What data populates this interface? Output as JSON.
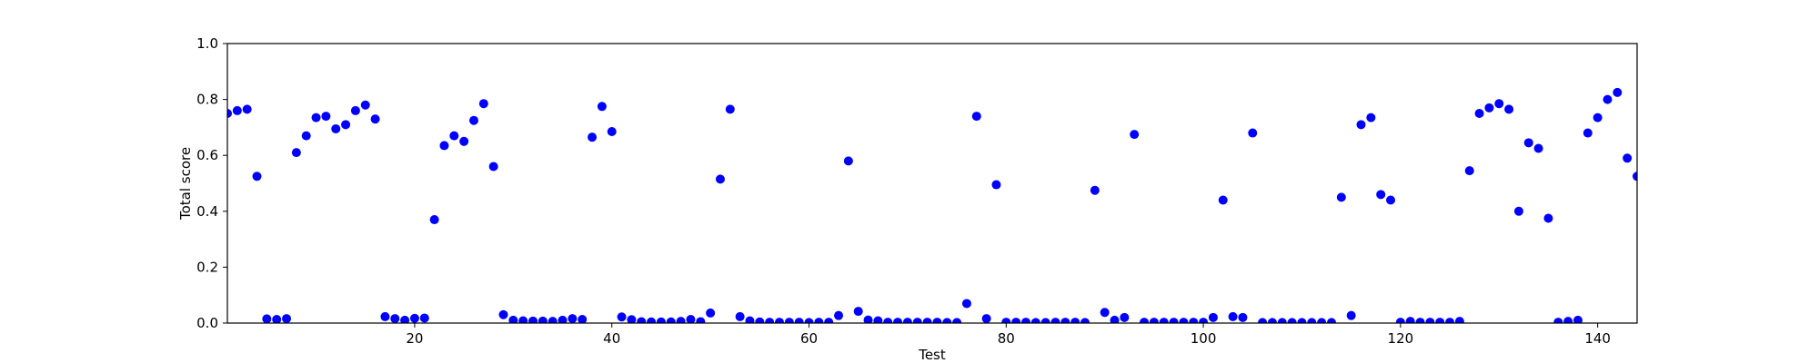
{
  "chart_data": {
    "type": "scatter",
    "title": "",
    "xlabel": "Test",
    "ylabel": "Total score",
    "xlim": [
      1,
      144
    ],
    "ylim": [
      0.0,
      1.0
    ],
    "xticks": [
      20,
      40,
      60,
      80,
      100,
      120,
      140
    ],
    "xtick_labels": [
      "20",
      "40",
      "60",
      "80",
      "100",
      "120",
      "140"
    ],
    "yticks": [
      0.0,
      0.2,
      0.4,
      0.6,
      0.8,
      1.0
    ],
    "ytick_labels": [
      "0.0",
      "0.2",
      "0.4",
      "0.6",
      "0.8",
      "1.0"
    ],
    "grid": false,
    "marker_color": "#0000ff",
    "series": [
      {
        "x": [
          1,
          2,
          3,
          4,
          5,
          6,
          7,
          8,
          9,
          10,
          11,
          12,
          13,
          14,
          15,
          16,
          17,
          18,
          19,
          20,
          21,
          22,
          23,
          24,
          25,
          26,
          27,
          28,
          29,
          30,
          31,
          32,
          33,
          34,
          35,
          36,
          37,
          38,
          39,
          40,
          41,
          42,
          43,
          44,
          45,
          46,
          47,
          48,
          49,
          50,
          51,
          52,
          53,
          54,
          55,
          56,
          57,
          58,
          59,
          60,
          61,
          62,
          63,
          64,
          65,
          66,
          67,
          68,
          69,
          70,
          71,
          72,
          73,
          74,
          75,
          76,
          77,
          78,
          79,
          80,
          81,
          82,
          83,
          84,
          85,
          86,
          87,
          88,
          89,
          90,
          91,
          92,
          93,
          94,
          95,
          96,
          97,
          98,
          99,
          100,
          101,
          102,
          103,
          104,
          105,
          106,
          107,
          108,
          109,
          110,
          111,
          112,
          113,
          114,
          115,
          116,
          117,
          118,
          119,
          120,
          121,
          122,
          123,
          124,
          125,
          126,
          127,
          128,
          129,
          130,
          131,
          132,
          133,
          134,
          135,
          136,
          137,
          138,
          139,
          140,
          141,
          142,
          143,
          144
        ],
        "y": [
          0.75,
          0.76,
          0.765,
          0.525,
          0.015,
          0.013,
          0.016,
          0.61,
          0.67,
          0.735,
          0.74,
          0.695,
          0.71,
          0.76,
          0.78,
          0.73,
          0.023,
          0.016,
          0.01,
          0.017,
          0.018,
          0.37,
          0.635,
          0.67,
          0.65,
          0.725,
          0.785,
          0.56,
          0.03,
          0.01,
          0.008,
          0.007,
          0.007,
          0.006,
          0.01,
          0.016,
          0.013,
          0.665,
          0.775,
          0.685,
          0.022,
          0.012,
          0.005,
          0.004,
          0.004,
          0.004,
          0.006,
          0.013,
          0.005,
          0.036,
          0.515,
          0.765,
          0.023,
          0.008,
          0.004,
          0.003,
          0.003,
          0.003,
          0.003,
          0.002,
          0.003,
          0.003,
          0.027,
          0.58,
          0.042,
          0.011,
          0.008,
          0.003,
          0.003,
          0.003,
          0.003,
          0.003,
          0.003,
          0.002,
          0.002,
          0.07,
          0.74,
          0.016,
          0.495,
          0.003,
          0.003,
          0.003,
          0.002,
          0.002,
          0.003,
          0.003,
          0.003,
          0.002,
          0.475,
          0.038,
          0.01,
          0.02,
          0.675,
          0.003,
          0.003,
          0.003,
          0.003,
          0.003,
          0.003,
          0.003,
          0.02,
          0.44,
          0.023,
          0.02,
          0.68,
          0.002,
          0.002,
          0.002,
          0.002,
          0.002,
          0.002,
          0.002,
          0.002,
          0.45,
          0.027,
          0.71,
          0.735,
          0.46,
          0.44,
          0.003,
          0.006,
          0.003,
          0.003,
          0.003,
          0.003,
          0.006,
          0.545,
          0.75,
          0.77,
          0.785,
          0.765,
          0.4,
          0.645,
          0.625,
          0.375,
          0.003,
          0.006,
          0.01,
          0.68,
          0.735,
          0.8,
          0.825,
          0.59,
          0.525
        ]
      }
    ]
  }
}
